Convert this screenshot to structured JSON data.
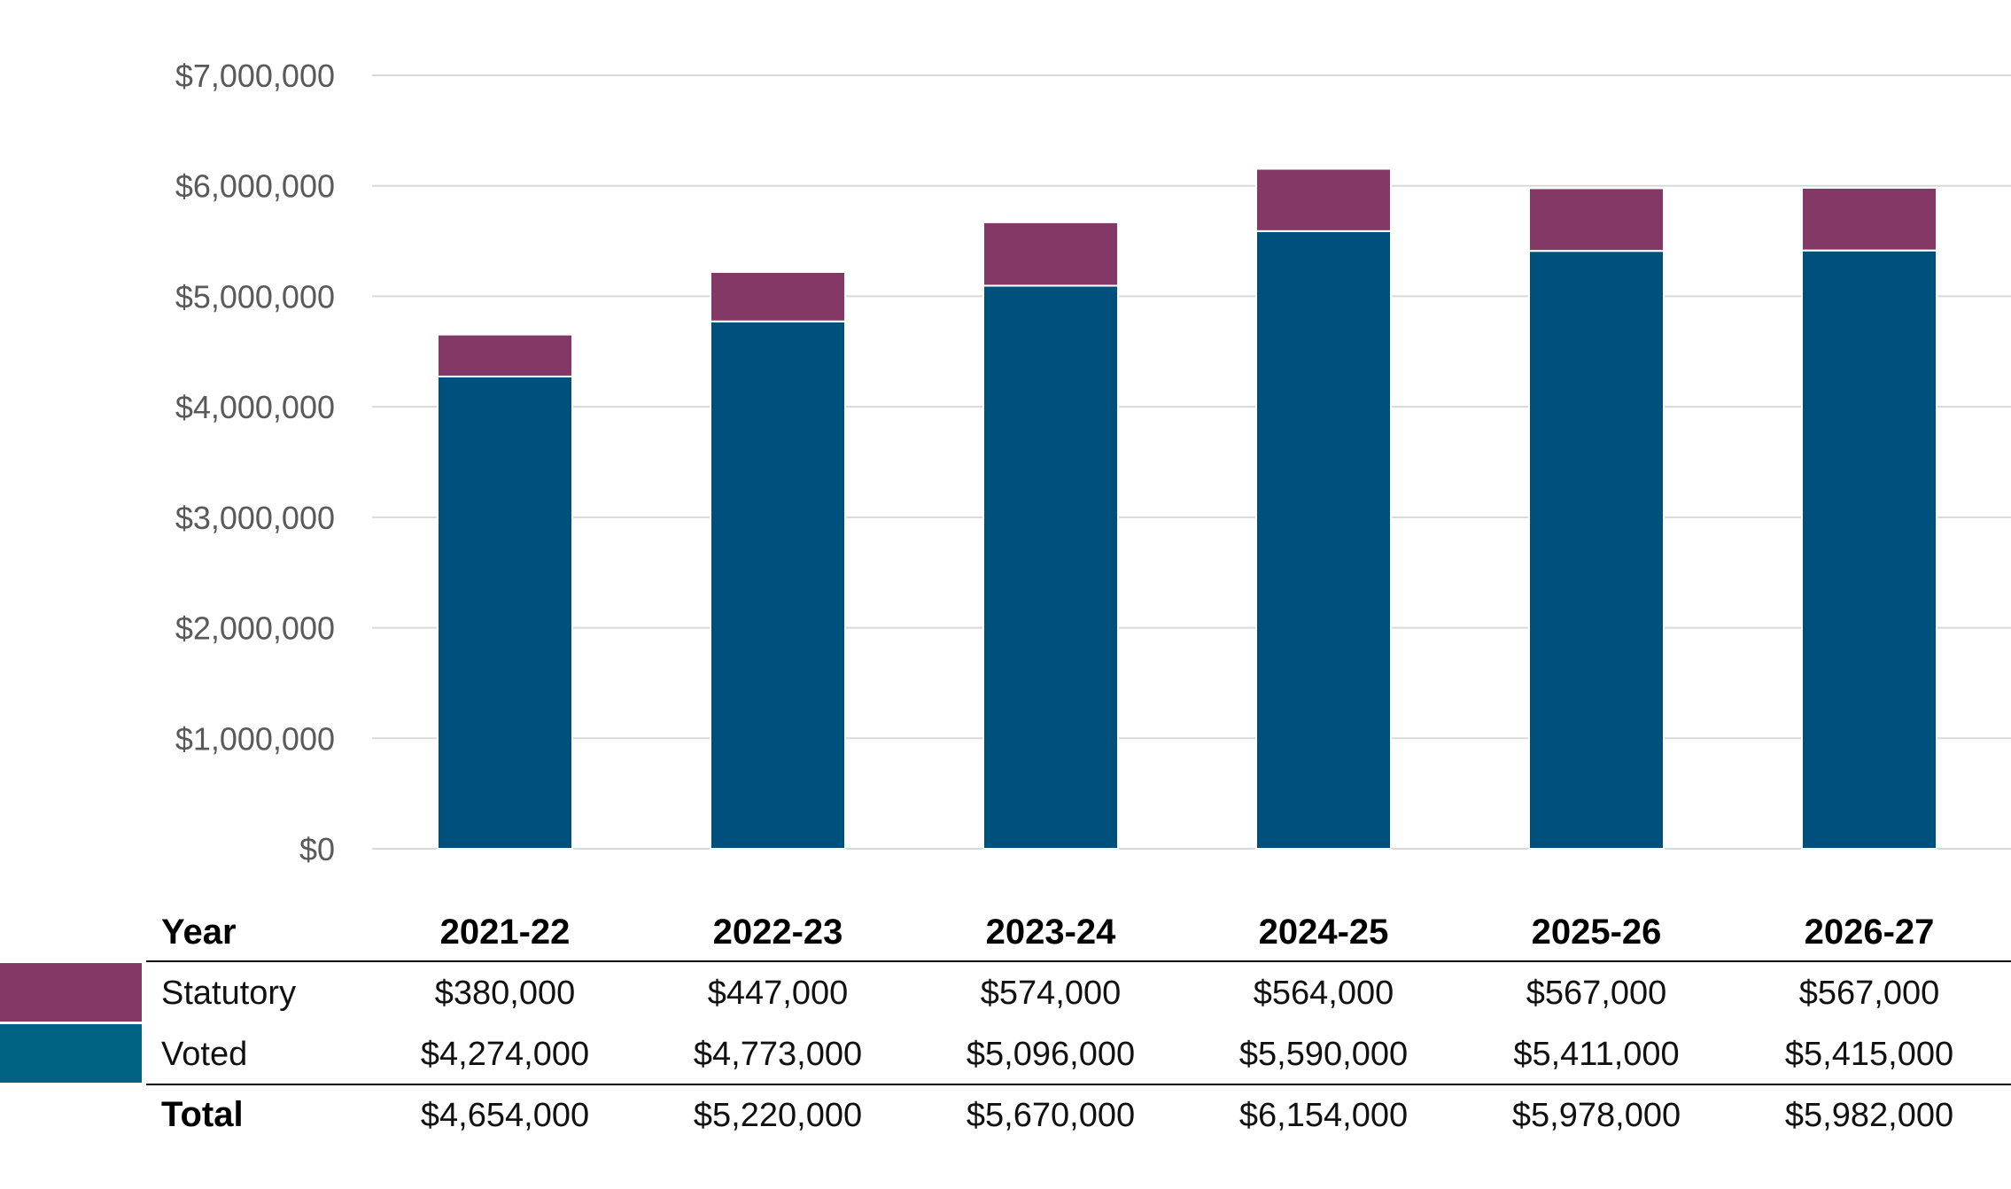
{
  "chart_data": {
    "type": "bar",
    "stacked": true,
    "categories": [
      "2021-22",
      "2022-23",
      "2023-24",
      "2024-25",
      "2025-26",
      "2026-27"
    ],
    "series": [
      {
        "name": "Voted",
        "values": [
          4274000,
          4773000,
          5096000,
          5590000,
          5411000,
          5415000
        ],
        "color": "#00507E",
        "legend_color": "#006384"
      },
      {
        "name": "Statutory",
        "values": [
          380000,
          447000,
          574000,
          564000,
          567000,
          567000
        ],
        "color": "#843866",
        "legend_color": "#843866"
      }
    ],
    "ylim": [
      0,
      7000000
    ],
    "yticks": [
      0,
      1000000,
      2000000,
      3000000,
      4000000,
      5000000,
      6000000,
      7000000
    ],
    "ytick_labels": [
      "$0",
      "$1,000,000",
      "$2,000,000",
      "$3,000,000",
      "$4,000,000",
      "$5,000,000",
      "$6,000,000",
      "$7,000,000"
    ],
    "grid": true,
    "table": {
      "header_label": "Year",
      "rows": [
        {
          "label": "Statutory",
          "values": [
            "$380,000",
            "$447,000",
            "$574,000",
            "$564,000",
            "$567,000",
            "$567,000"
          ]
        },
        {
          "label": "Voted",
          "values": [
            "$4,274,000",
            "$4,773,000",
            "$5,096,000",
            "$5,590,000",
            "$5,411,000",
            "$5,415,000"
          ]
        }
      ],
      "total": {
        "label": "Total",
        "values": [
          "$4,654,000",
          "$5,220,000",
          "$5,670,000",
          "$6,154,000",
          "$5,978,000",
          "$5,982,000"
        ]
      }
    }
  }
}
